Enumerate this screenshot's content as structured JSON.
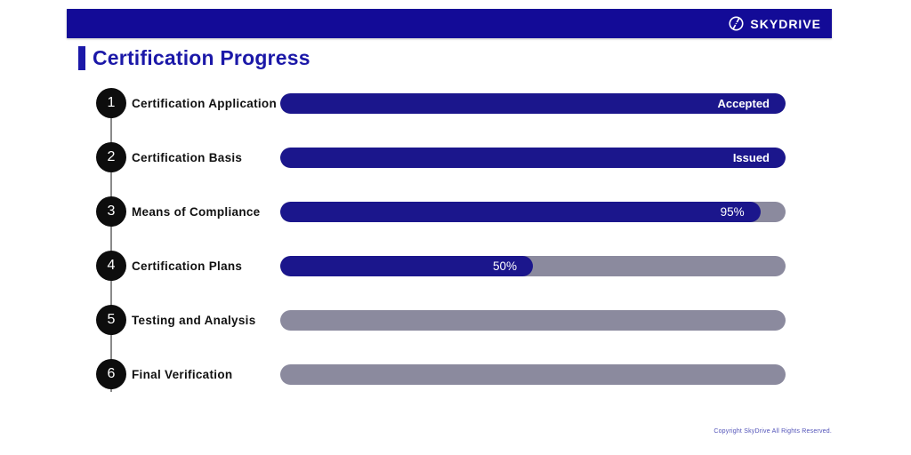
{
  "header": {
    "brand": "SKYDRIVE",
    "logo_icon": "skydrive-circle-slash-logo"
  },
  "title": "Certification Progress",
  "steps": [
    {
      "number": "1",
      "label": "Certification Application",
      "status": "Accepted",
      "percent": 100
    },
    {
      "number": "2",
      "label": "Certification Basis",
      "status": "Issued",
      "percent": 100
    },
    {
      "number": "3",
      "label": "Means of Compliance",
      "status": "95%",
      "percent": 95
    },
    {
      "number": "4",
      "label": "Certification Plans",
      "status": "50%",
      "percent": 50
    },
    {
      "number": "5",
      "label": "Testing and Analysis",
      "status": "",
      "percent": 0
    },
    {
      "number": "6",
      "label": "Final Verification",
      "status": "",
      "percent": 0
    }
  ],
  "footer": {
    "copyright": "Copyright SkyDrive All Rights Reserved."
  },
  "colors": {
    "brand_blue": "#130b97",
    "title_blue": "#1b18a8",
    "bar_blue": "#1b168c",
    "track_gray": "#8b8a9e",
    "circle_black": "#0d0d0d",
    "line_gray": "#8a8a8a",
    "copyright_blue": "#5152b8"
  },
  "chart_data": {
    "type": "bar",
    "orientation": "horizontal",
    "title": "Certification Progress",
    "categories": [
      "Certification Application",
      "Certification Basis",
      "Means of Compliance",
      "Certification Plans",
      "Testing and Analysis",
      "Final Verification"
    ],
    "values": [
      100,
      100,
      95,
      50,
      0,
      0
    ],
    "bar_labels": [
      "Accepted",
      "Issued",
      "95%",
      "50%",
      "",
      ""
    ],
    "xlim": [
      0,
      100
    ],
    "legend": false,
    "grid": false
  }
}
